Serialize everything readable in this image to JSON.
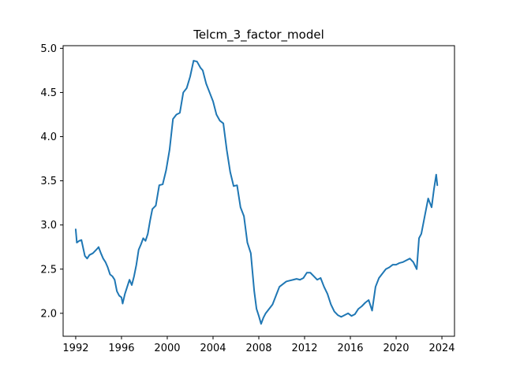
{
  "chart_data": {
    "type": "line",
    "title": "Telcm_3_factor_model",
    "xlabel": "",
    "ylabel": "",
    "xlim": [
      1990.9,
      2025.1
    ],
    "ylim": [
      1.74,
      5.03
    ],
    "x_ticks": [
      1992,
      1996,
      2000,
      2004,
      2008,
      2012,
      2016,
      2020,
      2024
    ],
    "x_tick_labels": [
      "1992",
      "1996",
      "2000",
      "2004",
      "2008",
      "2012",
      "2016",
      "2020",
      "2024"
    ],
    "y_ticks": [
      2.0,
      2.5,
      3.0,
      3.5,
      4.0,
      4.5,
      5.0
    ],
    "y_tick_labels": [
      "2.0",
      "2.5",
      "3.0",
      "3.5",
      "4.0",
      "4.5",
      "5.0"
    ],
    "grid": false,
    "legend": "none",
    "line_color": "#1f77b4",
    "series": [
      {
        "x": [
          1992.0,
          1992.1,
          1992.3,
          1992.5,
          1992.8,
          1993.0,
          1993.2,
          1993.5,
          1993.8,
          1994.0,
          1994.2,
          1994.4,
          1994.6,
          1994.8,
          1995.0,
          1995.2,
          1995.4,
          1995.6,
          1995.8,
          1996.0,
          1996.1,
          1996.3,
          1996.5,
          1996.7,
          1996.9,
          1997.1,
          1997.3,
          1997.5,
          1997.7,
          1997.9,
          1998.1,
          1998.3,
          1998.5,
          1998.7,
          1999.0,
          1999.3,
          1999.6,
          1999.9,
          2000.2,
          2000.5,
          2000.8,
          2001.1,
          2001.4,
          2001.7,
          2002.0,
          2002.3,
          2002.6,
          2002.9,
          2003.1,
          2003.4,
          2003.7,
          2004.0,
          2004.3,
          2004.6,
          2004.9,
          2005.2,
          2005.5,
          2005.8,
          2006.1,
          2006.4,
          2006.7,
          2007.0,
          2007.3,
          2007.6,
          2007.8,
          2008.0,
          2008.2,
          2008.4,
          2008.6,
          2008.9,
          2009.2,
          2009.5,
          2009.8,
          2010.1,
          2010.4,
          2010.7,
          2011.0,
          2011.3,
          2011.6,
          2011.9,
          2012.2,
          2012.5,
          2012.8,
          2013.1,
          2013.4,
          2013.7,
          2014.0,
          2014.3,
          2014.6,
          2014.9,
          2015.2,
          2015.5,
          2015.8,
          2016.1,
          2016.4,
          2016.7,
          2017.0,
          2017.3,
          2017.6,
          2017.9,
          2018.2,
          2018.5,
          2018.8,
          2019.1,
          2019.4,
          2019.7,
          2020.0,
          2020.3,
          2020.6,
          2020.9,
          2021.2,
          2021.5,
          2021.8,
          2022.0,
          2022.2,
          2022.5,
          2022.8,
          2023.1,
          2023.3,
          2023.5,
          2023.6
        ],
        "y": [
          2.95,
          2.8,
          2.82,
          2.83,
          2.65,
          2.62,
          2.66,
          2.68,
          2.72,
          2.75,
          2.68,
          2.62,
          2.58,
          2.52,
          2.44,
          2.42,
          2.38,
          2.25,
          2.2,
          2.18,
          2.11,
          2.22,
          2.3,
          2.38,
          2.32,
          2.42,
          2.55,
          2.72,
          2.78,
          2.85,
          2.82,
          2.9,
          3.05,
          3.18,
          3.22,
          3.45,
          3.46,
          3.62,
          3.85,
          4.2,
          4.25,
          4.27,
          4.5,
          4.55,
          4.68,
          4.86,
          4.85,
          4.78,
          4.75,
          4.6,
          4.5,
          4.4,
          4.25,
          4.18,
          4.15,
          3.85,
          3.6,
          3.44,
          3.45,
          3.2,
          3.1,
          2.8,
          2.68,
          2.25,
          2.05,
          1.97,
          1.88,
          1.95,
          2.0,
          2.05,
          2.1,
          2.2,
          2.3,
          2.33,
          2.36,
          2.37,
          2.38,
          2.39,
          2.38,
          2.4,
          2.46,
          2.46,
          2.42,
          2.38,
          2.4,
          2.3,
          2.22,
          2.1,
          2.02,
          1.98,
          1.96,
          1.98,
          2.0,
          1.97,
          1.99,
          2.05,
          2.08,
          2.12,
          2.15,
          2.03,
          2.3,
          2.4,
          2.45,
          2.5,
          2.52,
          2.55,
          2.55,
          2.57,
          2.58,
          2.6,
          2.62,
          2.58,
          2.5,
          2.85,
          2.9,
          3.1,
          3.3,
          3.2,
          3.4,
          3.57,
          3.45
        ]
      }
    ]
  }
}
